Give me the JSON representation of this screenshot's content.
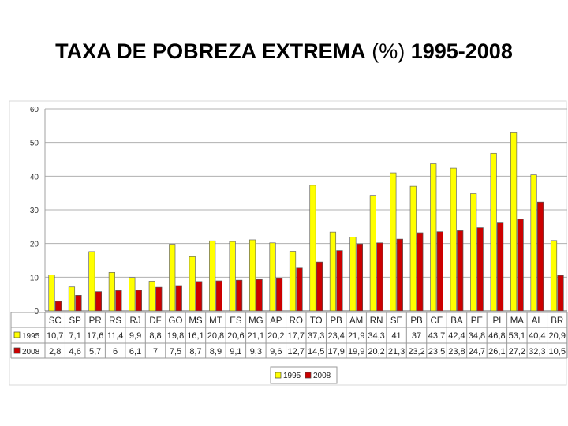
{
  "title": {
    "part1": "TAXA DE POBREZA EXTREMA",
    "part2": "(%)",
    "part3": "1995-2008"
  },
  "colors": {
    "series_1995": "#ffff00",
    "series_2008": "#cc0000",
    "grid": "#b0b0b0",
    "plot_border": "#a0a0a0"
  },
  "chart_data": {
    "type": "bar",
    "title": "TAXA DE POBREZA EXTREMA (%) 1995-2008",
    "ylim": [
      0,
      60
    ],
    "yticks": [
      0,
      10,
      20,
      30,
      40,
      50,
      60
    ],
    "grid": true,
    "legend_position": "bottom-center",
    "categories": [
      "SC",
      "SP",
      "PR",
      "RS",
      "RJ",
      "DF",
      "GO",
      "MS",
      "MT",
      "ES",
      "MG",
      "AP",
      "RO",
      "TO",
      "PB",
      "AM",
      "RN",
      "SE",
      "PB",
      "CE",
      "BA",
      "PE",
      "PI",
      "MA",
      "AL",
      "BR"
    ],
    "series": [
      {
        "name": "1995",
        "values": [
          10.7,
          7.1,
          17.6,
          11.4,
          9.9,
          8.8,
          19.8,
          16.1,
          20.8,
          20.6,
          21.1,
          20.2,
          17.7,
          37.3,
          23.4,
          21.9,
          34.3,
          41,
          37,
          43.7,
          42.4,
          34.8,
          46.8,
          53.1,
          40.4,
          20.9
        ],
        "labels": [
          "10,7",
          "7,1",
          "17,6",
          "11,4",
          "9,9",
          "8,8",
          "19,8",
          "16,1",
          "20,8",
          "20,6",
          "21,1",
          "20,2",
          "17,7",
          "37,3",
          "23,4",
          "21,9",
          "34,3",
          "41",
          "37",
          "43,7",
          "42,4",
          "34,8",
          "46,8",
          "53,1",
          "40,4",
          "20,9"
        ]
      },
      {
        "name": "2008",
        "values": [
          2.8,
          4.6,
          5.7,
          6,
          6.1,
          7,
          7.5,
          8.7,
          8.9,
          9.1,
          9.3,
          9.6,
          12.7,
          14.5,
          17.9,
          19.9,
          20.2,
          21.3,
          23.2,
          23.5,
          23.8,
          24.7,
          26.1,
          27.2,
          32.3,
          10.5
        ],
        "labels": [
          "2,8",
          "4,6",
          "5,7",
          "6",
          "6,1",
          "7",
          "7,5",
          "8,7",
          "8,9",
          "9,1",
          "9,3",
          "9,6",
          "12,7",
          "14,5",
          "17,9",
          "19,9",
          "20,2",
          "21,3",
          "23,2",
          "23,5",
          "23,8",
          "24,7",
          "26,1",
          "27,2",
          "32,3",
          "10,5"
        ]
      }
    ]
  }
}
